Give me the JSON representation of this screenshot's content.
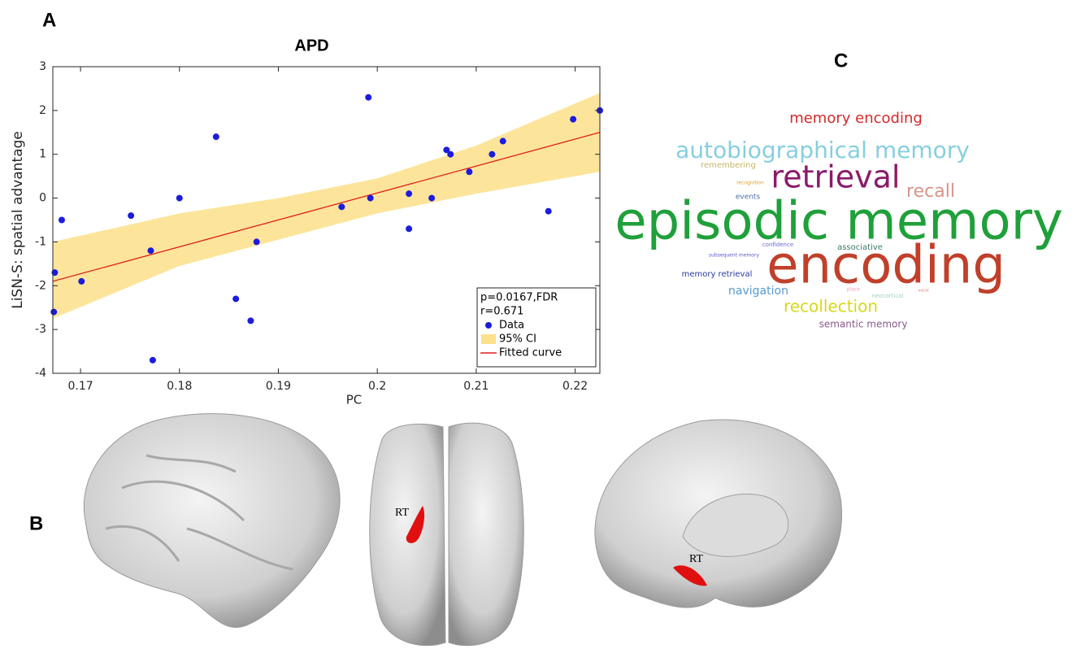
{
  "panel_labels": {
    "a": "A",
    "b": "B",
    "c": "C"
  },
  "chart_data": {
    "type": "scatter",
    "title": "APD",
    "x_label": "PC",
    "y_label": "LiSN-S: spatial advantage",
    "xlim": [
      0.1672,
      0.2225
    ],
    "ylim": [
      -4,
      3
    ],
    "xticks": [
      0.17,
      0.18,
      0.19,
      0.2,
      0.21,
      0.22
    ],
    "yticks": [
      -4,
      -3,
      -2,
      -1,
      0,
      1,
      2,
      3
    ],
    "grid": false,
    "legend": "lower right",
    "annotations": [
      "p=0.0167,FDR",
      "r=0.671"
    ],
    "series": [
      {
        "name": "Data",
        "type": "scatter",
        "color": "#1c1cdc",
        "x": [
          0.1673,
          0.1674,
          0.1681,
          0.1701,
          0.1751,
          0.1771,
          0.1773,
          0.18,
          0.1837,
          0.1857,
          0.1872,
          0.1878,
          0.1964,
          0.1991,
          0.1993,
          0.2032,
          0.2032,
          0.2055,
          0.207,
          0.2074,
          0.2093,
          0.2116,
          0.2127,
          0.2173,
          0.2198,
          0.2225
        ],
        "values": [
          -2.6,
          -1.7,
          -0.5,
          -1.9,
          -0.4,
          -1.2,
          -3.7,
          0,
          1.4,
          -2.3,
          -2.8,
          -1.0,
          -0.2,
          2.3,
          0,
          0.1,
          -0.7,
          0,
          1.1,
          1.0,
          0.6,
          1.0,
          1.3,
          -0.3,
          1.8,
          2.0
        ]
      },
      {
        "name": "95% CI",
        "type": "band",
        "color": "#fce08a",
        "x": [
          0.1672,
          0.18,
          0.19,
          0.2,
          0.21,
          0.2225
        ],
        "upper": [
          -1.0,
          -0.35,
          0.0,
          0.45,
          1.2,
          2.4
        ],
        "lower": [
          -2.75,
          -1.55,
          -0.95,
          -0.35,
          0.1,
          0.6
        ]
      },
      {
        "name": "Fitted curve",
        "type": "line",
        "color": "#e0201c",
        "x": [
          0.1672,
          0.2225
        ],
        "values": [
          -1.9,
          1.5
        ]
      }
    ]
  },
  "word_cloud": [
    {
      "text": "memory encoding",
      "color": "#d42a2a"
    },
    {
      "text": "autobiographical memory",
      "color": "#86cfe0"
    },
    {
      "text": "remembering",
      "color": "#c8b46a"
    },
    {
      "text": "retrieval",
      "color": "#8b1a6b"
    },
    {
      "text": "recall",
      "color": "#d7958a"
    },
    {
      "text": "recognition",
      "color": "#e0a030"
    },
    {
      "text": "events",
      "color": "#4a6ea8"
    },
    {
      "text": "episodic memory",
      "color": "#1fa03a"
    },
    {
      "text": "confidence",
      "color": "#6a6ad0"
    },
    {
      "text": "associative",
      "color": "#3a7a6a"
    },
    {
      "text": "subsequent memory",
      "color": "#5a5ad0"
    },
    {
      "text": "encoding",
      "color": "#c0402a"
    },
    {
      "text": "memory retrieval",
      "color": "#2a3aa0"
    },
    {
      "text": "navigation",
      "color": "#5a9ad0"
    },
    {
      "text": "place",
      "color": "#f0a0c0"
    },
    {
      "text": "neocortical",
      "color": "#a0d0c0"
    },
    {
      "text": "vocal",
      "color": "#e08080"
    },
    {
      "text": "recollection",
      "color": "#d8d81a"
    },
    {
      "text": "semantic memory",
      "color": "#8a5a8a"
    }
  ],
  "brain_labels": [
    "RT",
    "RT"
  ]
}
